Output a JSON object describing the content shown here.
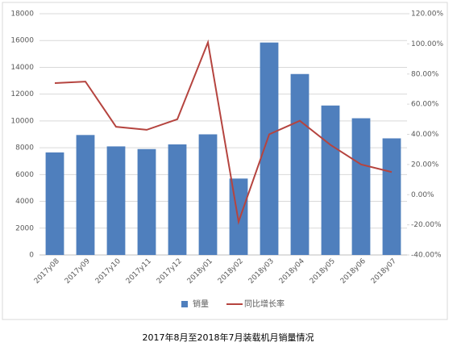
{
  "chart_data": {
    "type": "bar-line",
    "title": "2017年8月至2018年7月装载机月销量情况",
    "categories": [
      "2017y08",
      "2017y09",
      "2017y10",
      "2017y11",
      "2017y12",
      "2018y01",
      "2018y02",
      "2018y03",
      "2018y04",
      "2018y05",
      "2018y06",
      "2018y07"
    ],
    "series": [
      {
        "name": "销量",
        "type": "bar",
        "color": "#4f7fbd",
        "values": [
          7650,
          8950,
          8100,
          7900,
          8250,
          9000,
          5700,
          15850,
          13500,
          11150,
          10200,
          8700
        ]
      },
      {
        "name": "同比增长率",
        "type": "line",
        "axis": "y2",
        "color": "#b5443f",
        "values": [
          74,
          75,
          45,
          43,
          50,
          101,
          -18,
          40,
          49,
          33,
          20,
          15
        ]
      }
    ],
    "ylim": [
      0,
      18000
    ],
    "yticks": [
      0,
      2000,
      4000,
      6000,
      8000,
      10000,
      12000,
      14000,
      16000,
      18000
    ],
    "y2lim": [
      -40,
      120
    ],
    "y2ticks": [
      {
        "value": -40,
        "label": "-40.00%"
      },
      {
        "value": -20,
        "label": "-20.00%"
      },
      {
        "value": 0,
        "label": "0.00%"
      },
      {
        "value": 20,
        "label": "20.00%"
      },
      {
        "value": 40,
        "label": "40.00%"
      },
      {
        "value": 60,
        "label": "60.00%"
      },
      {
        "value": 80,
        "label": "80.00%"
      },
      {
        "value": 100,
        "label": "100.00%"
      },
      {
        "value": 120,
        "label": "120.00%"
      }
    ],
    "grid": true,
    "legend": "bottom"
  }
}
